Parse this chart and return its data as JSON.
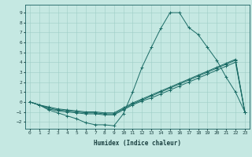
{
  "xlabel": "Humidex (Indice chaleur)",
  "xlim": [
    -0.5,
    23.5
  ],
  "ylim": [
    -2.7,
    9.8
  ],
  "xticks": [
    0,
    1,
    2,
    3,
    4,
    5,
    6,
    7,
    8,
    9,
    10,
    11,
    12,
    13,
    14,
    15,
    16,
    17,
    18,
    19,
    20,
    21,
    22,
    23
  ],
  "yticks": [
    -2,
    -1,
    0,
    1,
    2,
    3,
    4,
    5,
    6,
    7,
    8,
    9
  ],
  "bg_color": "#c5e8e2",
  "grid_color": "#9ecec7",
  "line_color": "#1a6b65",
  "line1": [
    0,
    -0.3,
    -0.8,
    -1.1,
    -1.4,
    -1.7,
    -2.1,
    -2.3,
    -2.3,
    -2.4,
    -1.2,
    1.0,
    3.5,
    5.5,
    7.4,
    9.0,
    9.0,
    7.5,
    6.8,
    5.5,
    4.2,
    2.5,
    1.0,
    -1.0
  ],
  "line2": [
    0,
    -0.3,
    -0.7,
    -0.9,
    -1.0,
    -1.1,
    -1.2,
    -1.2,
    -1.3,
    -1.3,
    -0.8,
    -0.3,
    0.1,
    0.4,
    0.8,
    1.2,
    1.6,
    2.0,
    2.4,
    2.8,
    3.2,
    3.6,
    4.0,
    -1.0
  ],
  "line3": [
    0,
    -0.3,
    -0.6,
    -0.8,
    -0.9,
    -1.0,
    -1.1,
    -1.1,
    -1.2,
    -1.2,
    -0.7,
    -0.2,
    0.2,
    0.6,
    1.0,
    1.4,
    1.8,
    2.2,
    2.6,
    3.0,
    3.4,
    3.8,
    4.2,
    -1.0
  ],
  "line4": [
    0,
    -0.3,
    -0.5,
    -0.7,
    -0.8,
    -0.9,
    -1.0,
    -1.0,
    -1.1,
    -1.1,
    -0.6,
    -0.1,
    0.3,
    0.7,
    1.1,
    1.5,
    1.9,
    2.3,
    2.7,
    3.1,
    3.5,
    3.9,
    4.3,
    -1.0
  ]
}
